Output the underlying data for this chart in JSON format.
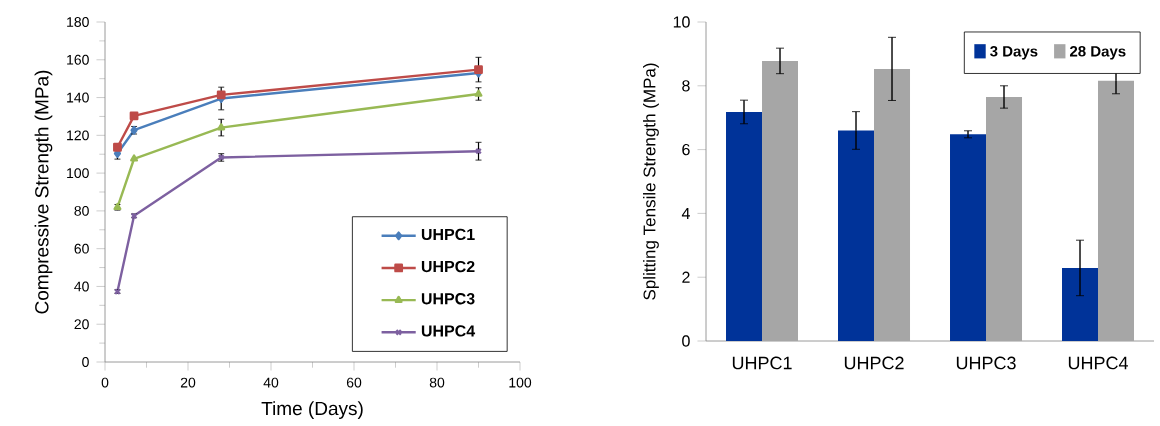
{
  "chart_data": [
    {
      "type": "line",
      "xlabel": "Time  (Days)",
      "ylabel": "Compressive Strength  (MPa)",
      "x": [
        3,
        7,
        28,
        90
      ],
      "xlim": [
        0,
        100
      ],
      "xticks": [
        0,
        20,
        40,
        60,
        80,
        100
      ],
      "ylim": [
        0,
        180
      ],
      "yticks": [
        0,
        20,
        40,
        60,
        80,
        100,
        120,
        140,
        160,
        180
      ],
      "grid": false,
      "legend": "bottom right",
      "series": [
        {
          "name": "UHPC1",
          "color": "#4a7ebb",
          "marker": "diamond",
          "values": [
            110.4,
            122.7,
            139.5,
            153.0
          ],
          "errors": [
            3,
            2,
            6,
            null
          ]
        },
        {
          "name": "UHPC2",
          "color": "#be4b48",
          "marker": "square",
          "values": [
            113.7,
            130.3,
            141.4,
            154.8
          ],
          "errors": [
            null,
            null,
            null,
            6.5
          ]
        },
        {
          "name": "UHPC3",
          "color": "#98b954",
          "marker": "triangle",
          "values": [
            81.9,
            107.6,
            124.1,
            141.9
          ],
          "errors": [
            1.5,
            null,
            4.4,
            3.3
          ]
        },
        {
          "name": "UHPC4",
          "color": "#7d60a0",
          "marker": "cross",
          "values": [
            37.3,
            77.4,
            108.3,
            111.6
          ],
          "errors": [
            1,
            1,
            2,
            4.7
          ]
        }
      ]
    },
    {
      "type": "bar",
      "ylabel": "Splitting Tensile Strength  (MPa)",
      "categories": [
        "UHPC1",
        "UHPC2",
        "UHPC3",
        "UHPC4"
      ],
      "ylim": [
        0,
        10
      ],
      "yticks": [
        0,
        2,
        4,
        6,
        8,
        10
      ],
      "grid": false,
      "legend": "top right",
      "series": [
        {
          "name": "3 Days",
          "color": "#003399",
          "values": [
            7.18,
            6.6,
            6.48,
            2.29
          ],
          "errors": [
            0.37,
            0.59,
            0.11,
            0.87
          ]
        },
        {
          "name": "28 Days",
          "color": "#a6a6a6",
          "values": [
            8.78,
            8.53,
            7.65,
            8.16
          ],
          "errors": [
            0.4,
            0.99,
            0.35,
            0.41
          ]
        }
      ]
    }
  ]
}
